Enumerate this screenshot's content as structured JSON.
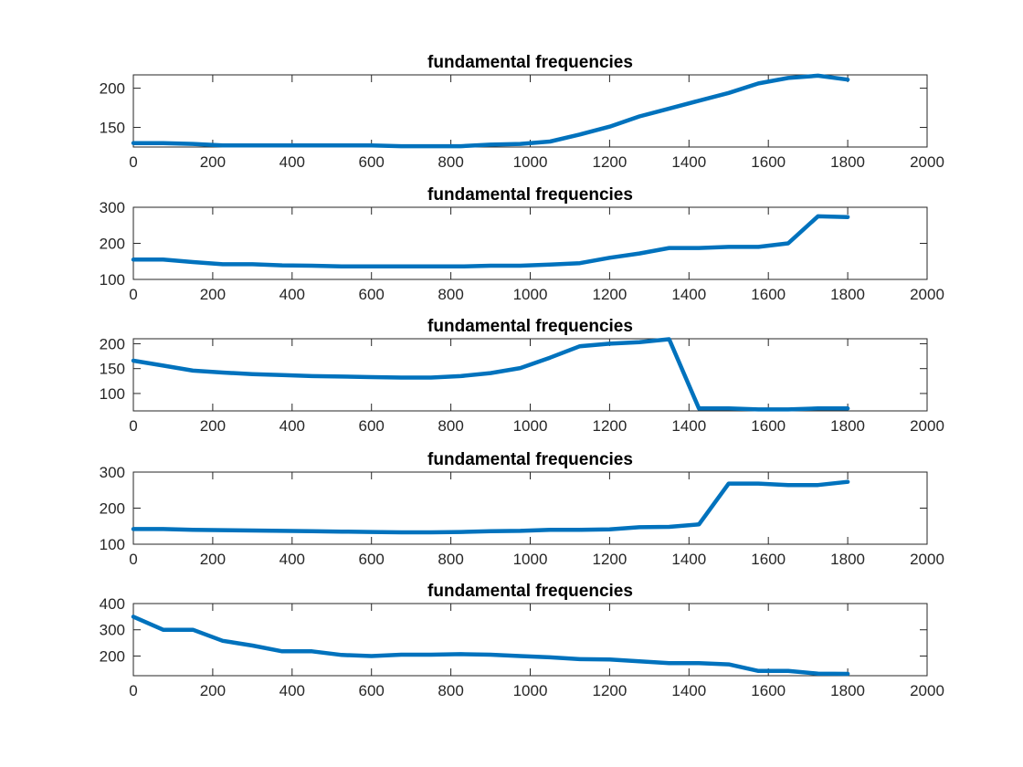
{
  "chart_data": [
    {
      "type": "line",
      "title": "fundamental frequencies",
      "xlabel": "",
      "ylabel": "",
      "xlim": [
        0,
        2000
      ],
      "ylim": [
        125,
        217
      ],
      "xticks": [
        0,
        200,
        400,
        600,
        800,
        1000,
        1200,
        1400,
        1600,
        1800,
        2000
      ],
      "yticks": [
        150,
        200
      ],
      "grid": false,
      "series": [
        {
          "color": "#0072BD",
          "x": [
            0,
            75,
            150,
            225,
            300,
            375,
            450,
            525,
            600,
            675,
            750,
            825,
            900,
            975,
            1050,
            1125,
            1200,
            1275,
            1350,
            1425,
            1500,
            1575,
            1650,
            1725,
            1800
          ],
          "y": [
            130,
            130,
            129,
            127,
            127,
            127,
            127,
            127,
            127,
            126,
            126,
            126,
            128,
            129,
            132,
            141,
            151,
            164,
            174,
            184,
            194,
            206,
            213,
            216,
            211
          ]
        }
      ]
    },
    {
      "type": "line",
      "title": "fundamental frequencies",
      "xlabel": "",
      "ylabel": "",
      "xlim": [
        0,
        2000
      ],
      "ylim": [
        100,
        300
      ],
      "xticks": [
        0,
        200,
        400,
        600,
        800,
        1000,
        1200,
        1400,
        1600,
        1800,
        2000
      ],
      "yticks": [
        100,
        200,
        300
      ],
      "grid": false,
      "series": [
        {
          "color": "#0072BD",
          "x": [
            0,
            75,
            150,
            225,
            300,
            375,
            450,
            525,
            600,
            675,
            750,
            825,
            900,
            975,
            1050,
            1125,
            1200,
            1275,
            1350,
            1425,
            1500,
            1575,
            1650,
            1725,
            1800
          ],
          "y": [
            155,
            155,
            148,
            142,
            142,
            139,
            138,
            136,
            136,
            136,
            136,
            136,
            138,
            138,
            141,
            145,
            160,
            172,
            187,
            187,
            190,
            190,
            200,
            275,
            273
          ]
        }
      ]
    },
    {
      "type": "line",
      "title": "fundamental frequencies",
      "xlabel": "",
      "ylabel": "",
      "xlim": [
        0,
        2000
      ],
      "ylim": [
        65,
        210
      ],
      "xticks": [
        0,
        200,
        400,
        600,
        800,
        1000,
        1200,
        1400,
        1600,
        1800,
        2000
      ],
      "yticks": [
        100,
        150,
        200
      ],
      "grid": false,
      "series": [
        {
          "color": "#0072BD",
          "x": [
            0,
            75,
            150,
            225,
            300,
            375,
            450,
            525,
            600,
            675,
            750,
            825,
            900,
            975,
            1050,
            1125,
            1200,
            1275,
            1350,
            1425,
            1500,
            1575,
            1650,
            1725,
            1800
          ],
          "y": [
            166,
            156,
            146,
            142,
            139,
            137,
            135,
            134,
            133,
            132,
            132,
            135,
            141,
            151,
            172,
            195,
            200,
            203,
            209,
            70,
            70,
            68,
            68,
            70,
            70
          ]
        }
      ]
    },
    {
      "type": "line",
      "title": "fundamental frequencies",
      "xlabel": "",
      "ylabel": "",
      "xlim": [
        0,
        2000
      ],
      "ylim": [
        100,
        300
      ],
      "xticks": [
        0,
        200,
        400,
        600,
        800,
        1000,
        1200,
        1400,
        1600,
        1800,
        2000
      ],
      "yticks": [
        100,
        200,
        300
      ],
      "grid": false,
      "series": [
        {
          "color": "#0072BD",
          "x": [
            0,
            75,
            150,
            225,
            300,
            375,
            450,
            525,
            600,
            675,
            750,
            825,
            900,
            975,
            1050,
            1125,
            1200,
            1275,
            1350,
            1425,
            1500,
            1575,
            1650,
            1725,
            1800
          ],
          "y": [
            142,
            142,
            140,
            139,
            138,
            137,
            136,
            135,
            134,
            133,
            133,
            134,
            136,
            137,
            140,
            140,
            141,
            147,
            148,
            155,
            268,
            268,
            264,
            264,
            273
          ]
        }
      ]
    },
    {
      "type": "line",
      "title": "fundamental frequencies",
      "xlabel": "",
      "ylabel": "",
      "xlim": [
        0,
        2000
      ],
      "ylim": [
        125,
        400
      ],
      "xticks": [
        0,
        200,
        400,
        600,
        800,
        1000,
        1200,
        1400,
        1600,
        1800,
        2000
      ],
      "yticks": [
        200,
        300,
        400
      ],
      "grid": false,
      "series": [
        {
          "color": "#0072BD",
          "x": [
            0,
            75,
            150,
            225,
            300,
            375,
            450,
            525,
            600,
            675,
            750,
            825,
            900,
            975,
            1050,
            1125,
            1200,
            1275,
            1350,
            1425,
            1500,
            1575,
            1650,
            1725,
            1800
          ],
          "y": [
            350,
            300,
            300,
            258,
            240,
            218,
            218,
            204,
            200,
            205,
            205,
            207,
            205,
            200,
            195,
            188,
            187,
            180,
            173,
            173,
            168,
            143,
            143,
            133,
            132
          ]
        }
      ]
    }
  ]
}
